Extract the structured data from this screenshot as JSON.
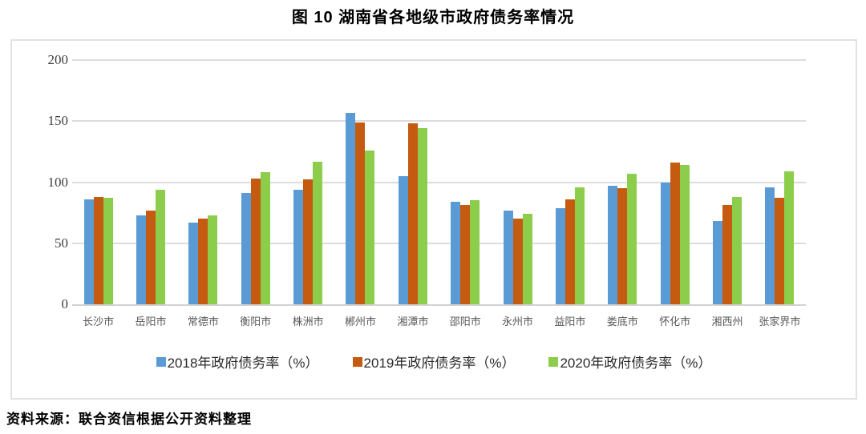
{
  "title": "图 10  湖南省各地级市政府债务率情况",
  "source_note": "资料来源：联合资信根据公开资料整理",
  "colors": {
    "series_2018": "#5B9BD5",
    "series_2019": "#C55A11",
    "series_2020": "#8CCD4B",
    "gridline": "#DCDCDC",
    "axis_text": "#595959",
    "tick_text": "#3F3F3F"
  },
  "chart_data": {
    "type": "bar",
    "title": "图 10  湖南省各地级市政府债务率情况",
    "categories": [
      "长沙市",
      "岳阳市",
      "常德市",
      "衡阳市",
      "株洲市",
      "郴州市",
      "湘潭市",
      "邵阳市",
      "永州市",
      "益阳市",
      "娄底市",
      "怀化市",
      "湘西州",
      "张家界市"
    ],
    "series": [
      {
        "name": "2018年政府债务率（%）",
        "color": "#5B9BD5",
        "values": [
          86,
          73,
          67,
          91,
          94,
          157,
          105,
          84,
          77,
          79,
          97,
          100,
          68,
          96
        ]
      },
      {
        "name": "2019年政府债务率（%）",
        "color": "#C55A11",
        "values": [
          88,
          77,
          70,
          103,
          102,
          149,
          148,
          81,
          70,
          86,
          95,
          116,
          81,
          87
        ]
      },
      {
        "name": "2020年政府债务率（%）",
        "color": "#8CCD4B",
        "values": [
          87,
          94,
          73,
          108,
          117,
          126,
          144,
          85,
          74,
          96,
          107,
          114,
          88,
          109
        ]
      }
    ],
    "xlabel": "",
    "ylabel": "",
    "ylim": [
      0,
      200
    ],
    "yticks": [
      0,
      50,
      100,
      150,
      200
    ],
    "grid": "horizontal",
    "legend_position": "bottom"
  }
}
